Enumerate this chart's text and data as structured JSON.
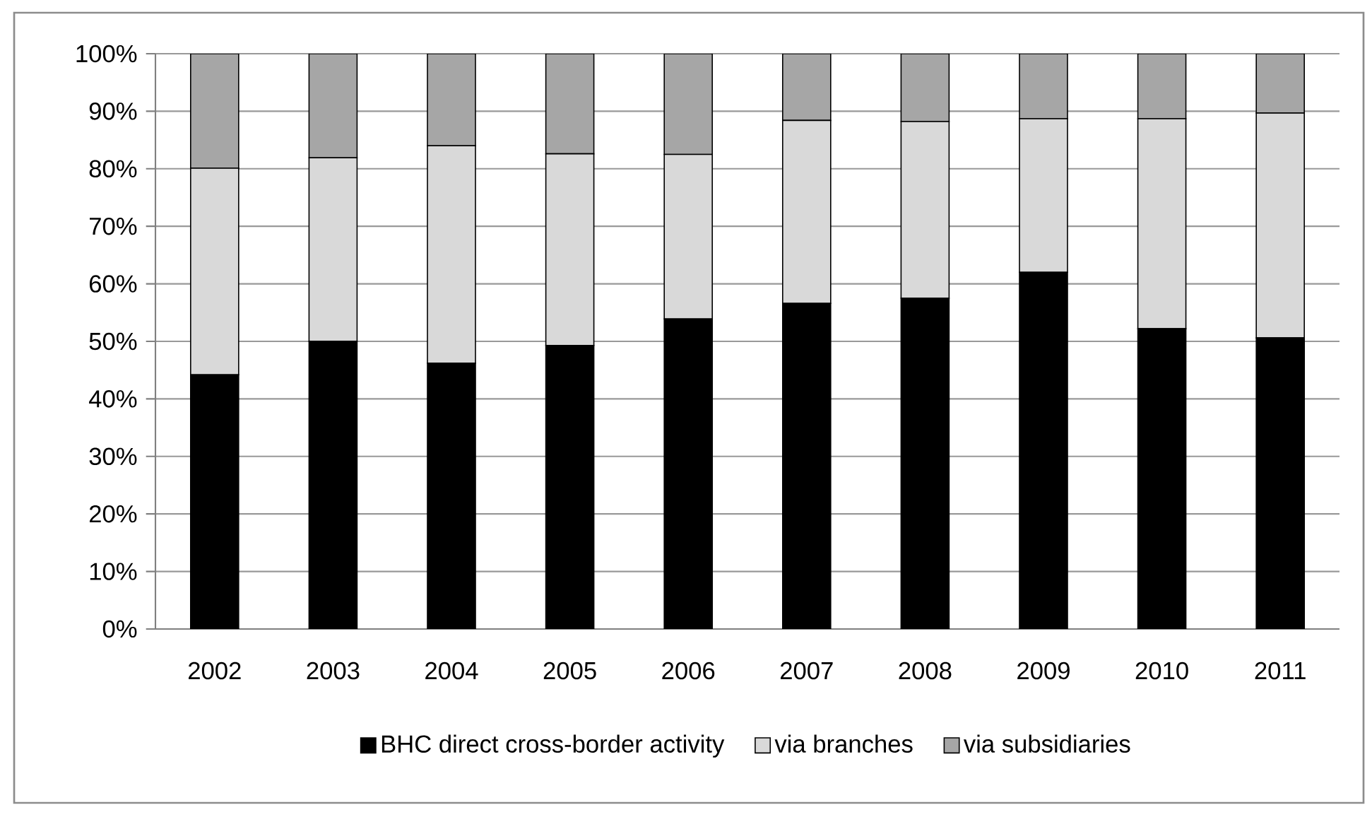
{
  "chart_data": {
    "type": "bar",
    "stacked": true,
    "categories": [
      "2002",
      "2003",
      "2004",
      "2005",
      "2006",
      "2007",
      "2008",
      "2009",
      "2010",
      "2011"
    ],
    "series": [
      {
        "name": "BHC direct cross-border activity",
        "color": "#000000",
        "values": [
          44.2,
          50.0,
          46.2,
          49.3,
          53.9,
          56.6,
          57.5,
          62.0,
          52.2,
          50.6
        ]
      },
      {
        "name": "via branches",
        "color": "#d9d9d9",
        "values": [
          35.9,
          31.9,
          37.8,
          33.3,
          28.6,
          31.8,
          30.7,
          26.7,
          36.5,
          39.1
        ]
      },
      {
        "name": "via subsidiaries",
        "color": "#a6a6a6",
        "values": [
          19.9,
          18.1,
          16.0,
          17.4,
          17.5,
          11.6,
          11.8,
          11.3,
          11.3,
          10.3
        ]
      }
    ],
    "ylim": [
      0,
      100
    ],
    "yticks": [
      {
        "value": 0,
        "label": "0%"
      },
      {
        "value": 10,
        "label": "10%"
      },
      {
        "value": 20,
        "label": "20%"
      },
      {
        "value": 30,
        "label": "30%"
      },
      {
        "value": 40,
        "label": "40%"
      },
      {
        "value": 50,
        "label": "50%"
      },
      {
        "value": 60,
        "label": "60%"
      },
      {
        "value": 70,
        "label": "70%"
      },
      {
        "value": 80,
        "label": "80%"
      },
      {
        "value": 90,
        "label": "90%"
      },
      {
        "value": 100,
        "label": "100%"
      }
    ],
    "grid": "y",
    "legend": "bottom"
  }
}
